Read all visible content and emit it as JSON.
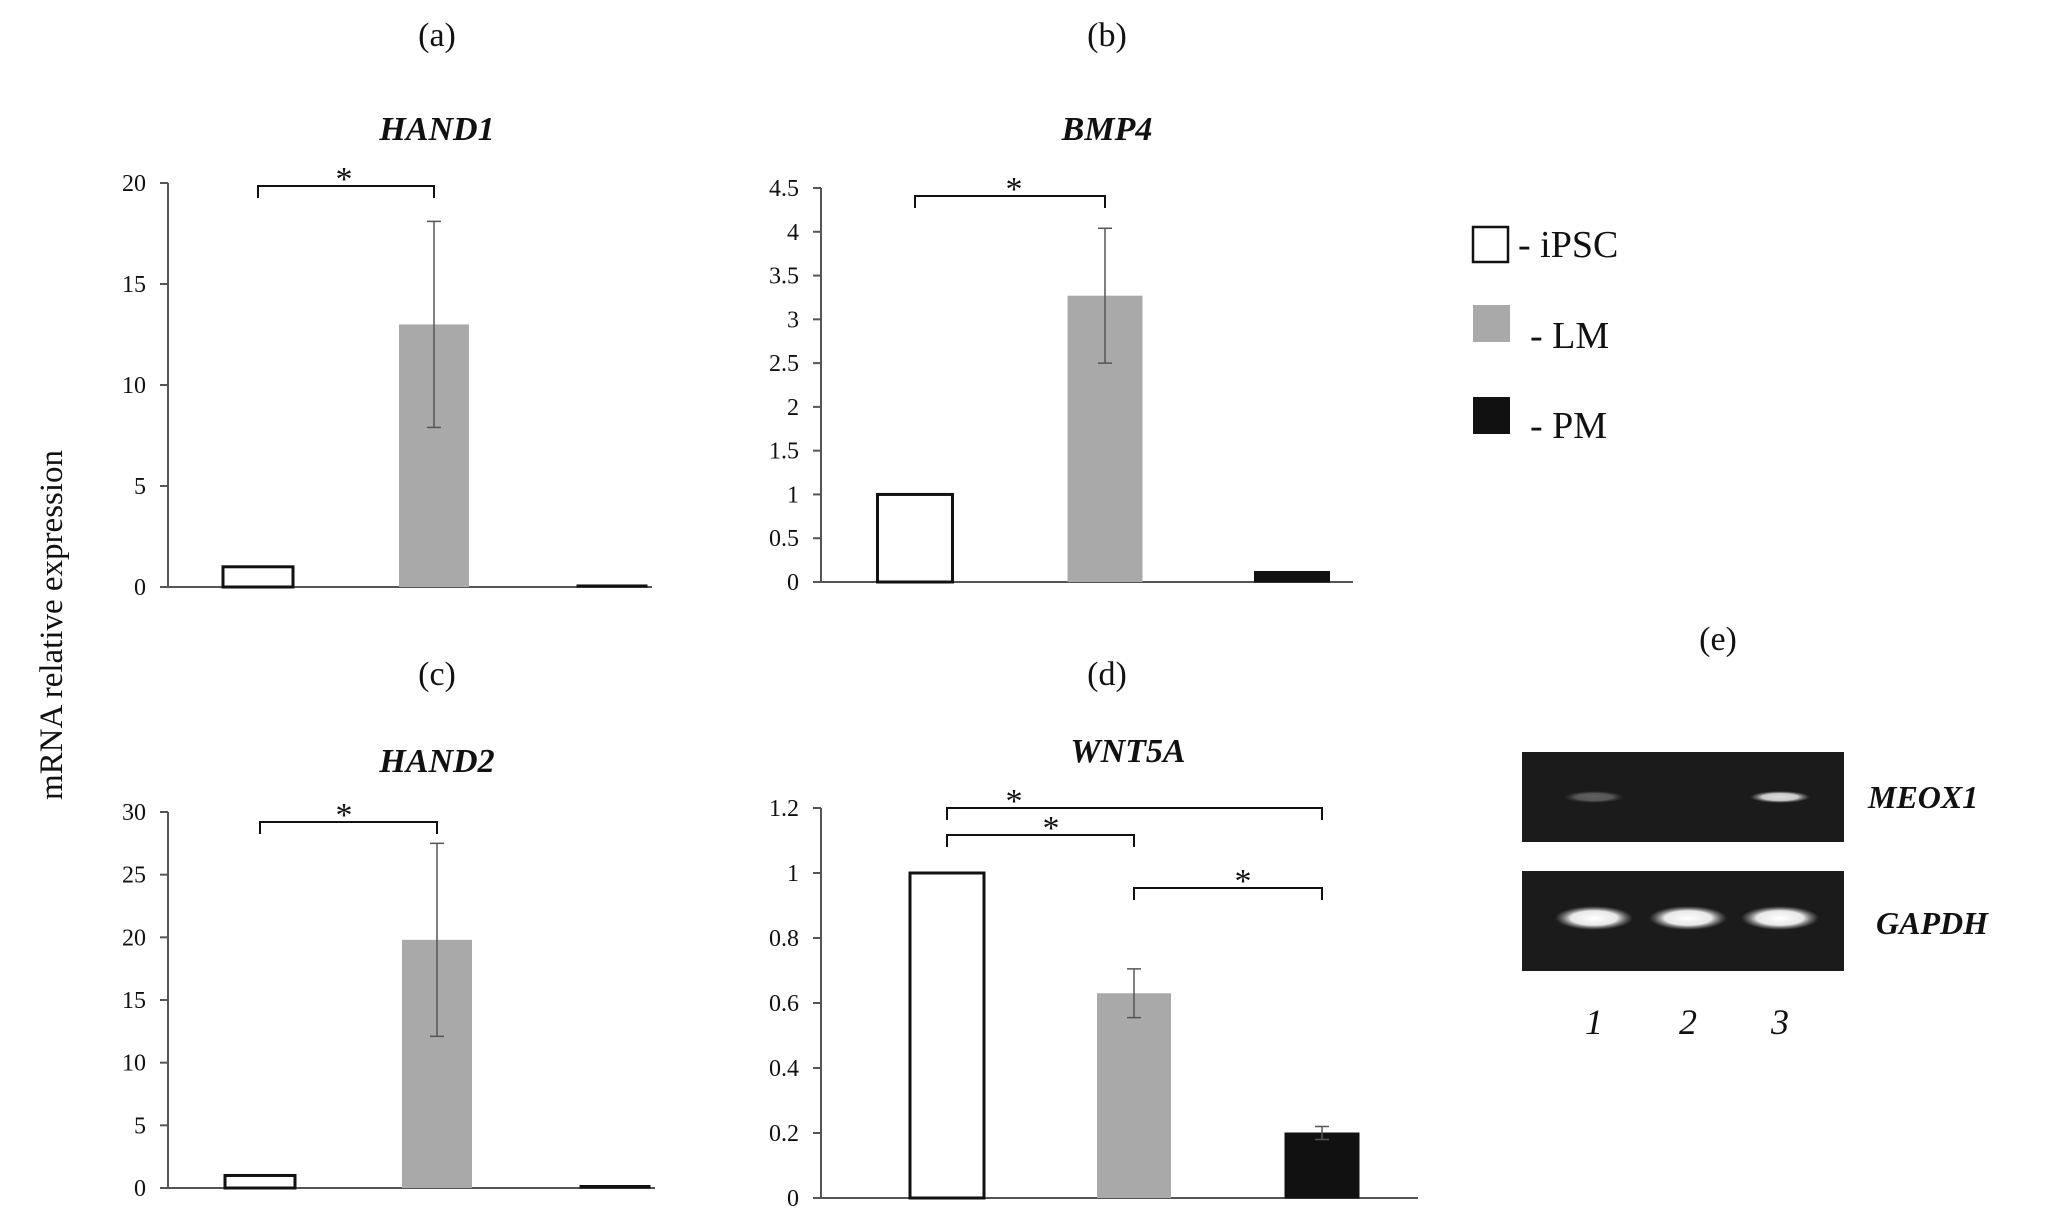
{
  "shared": {
    "ylabel": "mRNA relative expression"
  },
  "legend": {
    "items": [
      {
        "label": "- iPSC",
        "color": "#ffffff"
      },
      {
        "label": "- LM",
        "color": "#a9a9a9"
      },
      {
        "label": "- PM",
        "color": "#111111"
      }
    ]
  },
  "colors": {
    "iPSC": "#ffffff",
    "LM": "#a9a9a9",
    "PM": "#111111",
    "axis": "#555555",
    "gel_background": "#1b1b1b"
  },
  "chart_data": [
    {
      "panel": "(a)",
      "type": "bar",
      "title": "HAND1",
      "categories": [
        "iPSC",
        "LM",
        "PM"
      ],
      "values": [
        1.0,
        13.0,
        0.1
      ],
      "errors": [
        0,
        5.1,
        0
      ],
      "ylim": [
        0,
        20
      ],
      "yticks": [
        "0",
        "5",
        "10",
        "15",
        "20"
      ],
      "significance": [
        {
          "from": 0,
          "to": 1,
          "label": "*"
        }
      ]
    },
    {
      "panel": "(b)",
      "type": "bar",
      "title": "BMP4",
      "categories": [
        "iPSC",
        "LM",
        "PM"
      ],
      "values": [
        1.0,
        3.27,
        0.12
      ],
      "errors": [
        0,
        0.77,
        0
      ],
      "ylim": [
        0,
        4.5
      ],
      "yticks": [
        "0",
        "0.5",
        "1",
        "1.5",
        "2",
        "2.5",
        "3",
        "3.5",
        "4",
        "4.5"
      ],
      "significance": [
        {
          "from": 0,
          "to": 1,
          "label": "*"
        }
      ]
    },
    {
      "panel": "(c)",
      "type": "bar",
      "title": "HAND2",
      "categories": [
        "iPSC",
        "LM",
        "PM"
      ],
      "values": [
        1.0,
        19.8,
        0.2
      ],
      "errors": [
        0,
        7.7,
        0
      ],
      "ylim": [
        0,
        30
      ],
      "yticks": [
        "0",
        "5",
        "10",
        "15",
        "20",
        "25",
        "30"
      ],
      "significance": [
        {
          "from": 0,
          "to": 1,
          "label": "*"
        }
      ]
    },
    {
      "panel": "(d)",
      "type": "bar",
      "title": "WNT5A",
      "categories": [
        "iPSC",
        "LM",
        "PM"
      ],
      "values": [
        1.0,
        0.63,
        0.2
      ],
      "errors": [
        0,
        0.075,
        0.02
      ],
      "ylim": [
        0,
        1.2
      ],
      "yticks": [
        "0",
        "0.2",
        "0.4",
        "0.6",
        "0.8",
        "1",
        "1.2"
      ],
      "significance": [
        {
          "from": 0,
          "to": 2,
          "label": "*",
          "level": 2
        },
        {
          "from": 0,
          "to": 1,
          "label": "*",
          "level": 1
        },
        {
          "from": 1,
          "to": 2,
          "label": "*",
          "level": 0
        }
      ]
    }
  ],
  "gel": {
    "panel": "(e)",
    "rows": [
      {
        "label": "MEOX1",
        "band_intensity": [
          0.3,
          0.0,
          0.85
        ]
      },
      {
        "label": "GAPDH",
        "band_intensity": [
          1.0,
          1.0,
          1.0
        ]
      }
    ],
    "lanes": [
      "1",
      "2",
      "3"
    ]
  }
}
